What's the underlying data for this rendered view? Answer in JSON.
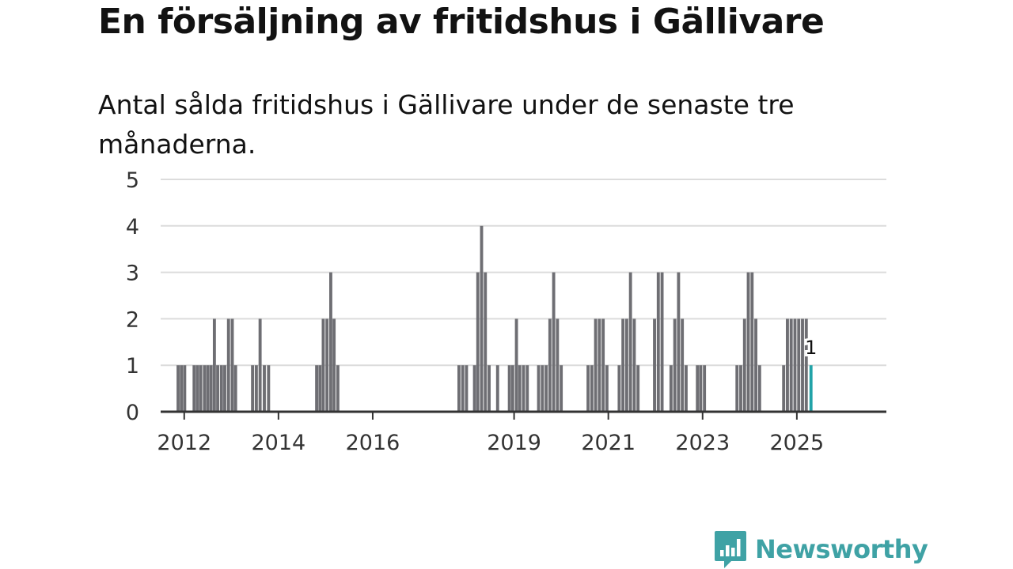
{
  "header": {
    "title": "En försäljning av fritidshus i Gällivare",
    "subtitle": "Antal sålda fritidshus i Gällivare under de senaste tre månaderna."
  },
  "brand": {
    "name": "Newsworthy",
    "color": "#3fa2a5",
    "icon": "newsworthy-chart-icon"
  },
  "colors": {
    "bar": "#6e6e73",
    "highlight": "#22a3a8"
  },
  "chart_data": {
    "type": "bar",
    "title": "Antal sålda fritidshus i Gällivare under de senaste tre månaderna.",
    "xlabel": "",
    "ylabel": "",
    "ylim": [
      0,
      5
    ],
    "yticks": [
      "0",
      "1",
      "2",
      "3",
      "4",
      "5"
    ],
    "xlim": [
      2011.5,
      2026.9
    ],
    "xticks": [
      {
        "value": 2012,
        "label": "2012"
      },
      {
        "value": 2014,
        "label": "2014"
      },
      {
        "value": 2016,
        "label": "2016"
      },
      {
        "value": 2019,
        "label": "2019"
      },
      {
        "value": 2021,
        "label": "2021"
      },
      {
        "value": 2023,
        "label": "2023"
      },
      {
        "value": 2025,
        "label": "2025"
      }
    ],
    "bar_width_years": 0.065,
    "series": [
      {
        "name": "Antal sålda fritidshus",
        "points": [
          [
            2011.87,
            1
          ],
          [
            2011.94,
            1
          ],
          [
            2012.01,
            1
          ],
          [
            2012.21,
            1
          ],
          [
            2012.28,
            1
          ],
          [
            2012.35,
            1
          ],
          [
            2012.43,
            1
          ],
          [
            2012.5,
            1
          ],
          [
            2012.57,
            1
          ],
          [
            2012.64,
            2
          ],
          [
            2012.71,
            1
          ],
          [
            2012.79,
            1
          ],
          [
            2012.86,
            1
          ],
          [
            2012.94,
            2
          ],
          [
            2013.02,
            2
          ],
          [
            2013.09,
            1
          ],
          [
            2013.45,
            1
          ],
          [
            2013.53,
            1
          ],
          [
            2013.61,
            2
          ],
          [
            2013.7,
            1
          ],
          [
            2013.79,
            1
          ],
          [
            2014.81,
            1
          ],
          [
            2014.88,
            1
          ],
          [
            2014.95,
            2
          ],
          [
            2015.03,
            2
          ],
          [
            2015.11,
            3
          ],
          [
            2015.18,
            2
          ],
          [
            2015.26,
            1
          ],
          [
            2017.83,
            1
          ],
          [
            2017.91,
            1
          ],
          [
            2017.99,
            1
          ],
          [
            2018.16,
            1
          ],
          [
            2018.23,
            3
          ],
          [
            2018.31,
            4
          ],
          [
            2018.39,
            3
          ],
          [
            2018.47,
            1
          ],
          [
            2018.65,
            1
          ],
          [
            2018.9,
            1
          ],
          [
            2018.97,
            1
          ],
          [
            2019.05,
            2
          ],
          [
            2019.12,
            1
          ],
          [
            2019.2,
            1
          ],
          [
            2019.28,
            1
          ],
          [
            2019.52,
            1
          ],
          [
            2019.6,
            1
          ],
          [
            2019.68,
            1
          ],
          [
            2019.76,
            2
          ],
          [
            2019.84,
            3
          ],
          [
            2019.92,
            2
          ],
          [
            2020.0,
            1
          ],
          [
            2020.57,
            1
          ],
          [
            2020.65,
            1
          ],
          [
            2020.73,
            2
          ],
          [
            2020.81,
            2
          ],
          [
            2020.89,
            2
          ],
          [
            2020.97,
            1
          ],
          [
            2021.23,
            1
          ],
          [
            2021.31,
            2
          ],
          [
            2021.39,
            2
          ],
          [
            2021.47,
            3
          ],
          [
            2021.55,
            2
          ],
          [
            2021.63,
            1
          ],
          [
            2021.98,
            2
          ],
          [
            2022.06,
            3
          ],
          [
            2022.14,
            3
          ],
          [
            2022.33,
            1
          ],
          [
            2022.41,
            2
          ],
          [
            2022.49,
            3
          ],
          [
            2022.57,
            2
          ],
          [
            2022.65,
            1
          ],
          [
            2022.89,
            1
          ],
          [
            2022.96,
            1
          ],
          [
            2023.04,
            1
          ],
          [
            2023.73,
            1
          ],
          [
            2023.81,
            1
          ],
          [
            2023.89,
            2
          ],
          [
            2023.97,
            3
          ],
          [
            2024.05,
            3
          ],
          [
            2024.13,
            2
          ],
          [
            2024.21,
            1
          ],
          [
            2024.72,
            1
          ],
          [
            2024.8,
            2
          ],
          [
            2024.88,
            2
          ],
          [
            2024.96,
            2
          ],
          [
            2025.04,
            2
          ],
          [
            2025.12,
            2
          ],
          [
            2025.2,
            2
          ],
          [
            2025.3,
            1
          ]
        ]
      }
    ],
    "highlight": {
      "x": 2025.3,
      "value": 1,
      "label": "1"
    }
  }
}
